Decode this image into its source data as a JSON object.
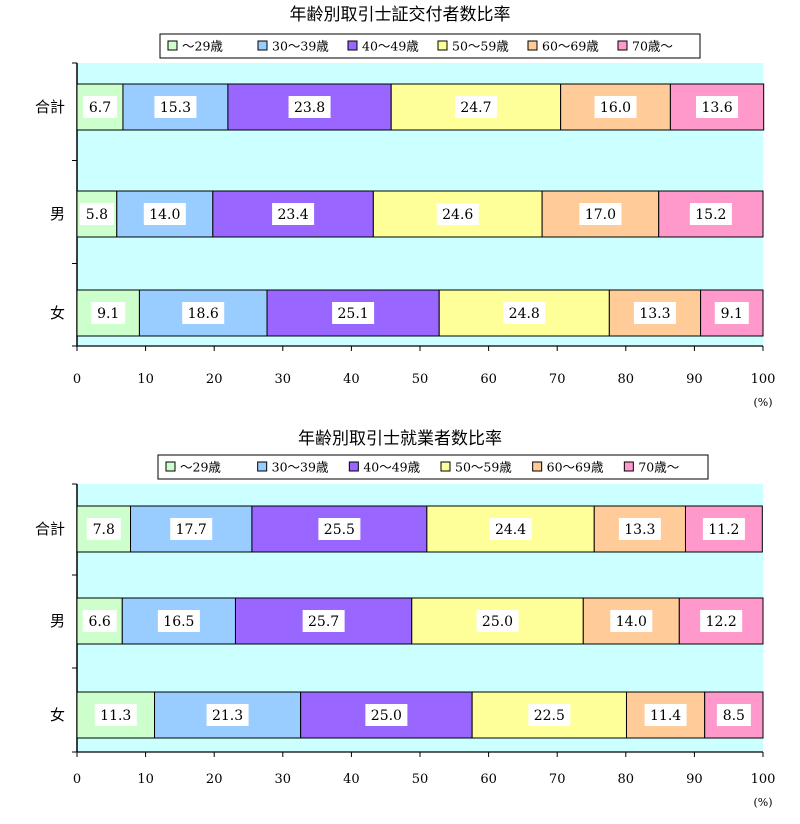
{
  "axis_unit": "(%)",
  "colors": {
    "plot_bg": "#ccffff",
    "label_box": "#ffffff",
    "segments": [
      "#ccffcc",
      "#99ccff",
      "#9966ff",
      "#ffff99",
      "#ffcc99",
      "#ff99cc"
    ]
  },
  "chart_data": [
    {
      "type": "bar",
      "orientation": "horizontal",
      "stacked": true,
      "title": "年齢別取引士証交付者数比率",
      "categories": [
        "合計",
        "男",
        "女"
      ],
      "legend": [
        "〜29歳",
        "30〜39歳",
        "40〜49歳",
        "50〜59歳",
        "60〜69歳",
        "70歳〜"
      ],
      "legend_position": "top",
      "series": [
        {
          "name": "〜29歳",
          "values": [
            6.7,
            5.8,
            9.1
          ]
        },
        {
          "name": "30〜39歳",
          "values": [
            15.3,
            14.0,
            18.6
          ]
        },
        {
          "name": "40〜49歳",
          "values": [
            23.8,
            23.4,
            25.1
          ]
        },
        {
          "name": "50〜59歳",
          "values": [
            24.7,
            24.6,
            24.8
          ]
        },
        {
          "name": "60〜69歳",
          "values": [
            16.0,
            17.0,
            13.3
          ]
        },
        {
          "name": "70歳〜",
          "values": [
            13.6,
            15.2,
            9.1
          ]
        }
      ],
      "xlim": [
        0,
        100
      ],
      "xticks": [
        0,
        10,
        20,
        30,
        40,
        50,
        60,
        70,
        80,
        90,
        100
      ],
      "xunit": "(%)",
      "grid": false
    },
    {
      "type": "bar",
      "orientation": "horizontal",
      "stacked": true,
      "title": "年齢別取引士就業者数比率",
      "categories": [
        "合計",
        "男",
        "女"
      ],
      "legend": [
        "〜29歳",
        "30〜39歳",
        "40〜49歳",
        "50〜59歳",
        "60〜69歳",
        "70歳〜"
      ],
      "legend_position": "top",
      "series": [
        {
          "name": "〜29歳",
          "values": [
            7.8,
            6.6,
            11.3
          ]
        },
        {
          "name": "30〜39歳",
          "values": [
            17.7,
            16.5,
            21.3
          ]
        },
        {
          "name": "40〜49歳",
          "values": [
            25.5,
            25.7,
            25.0
          ]
        },
        {
          "name": "50〜59歳",
          "values": [
            24.4,
            25.0,
            22.5
          ]
        },
        {
          "name": "60〜69歳",
          "values": [
            13.3,
            14.0,
            11.4
          ]
        },
        {
          "name": "70歳〜",
          "values": [
            11.2,
            12.2,
            8.5
          ]
        }
      ],
      "xlim": [
        0,
        100
      ],
      "xticks": [
        0,
        10,
        20,
        30,
        40,
        50,
        60,
        70,
        80,
        90,
        100
      ],
      "xunit": "(%)",
      "grid": false
    }
  ]
}
